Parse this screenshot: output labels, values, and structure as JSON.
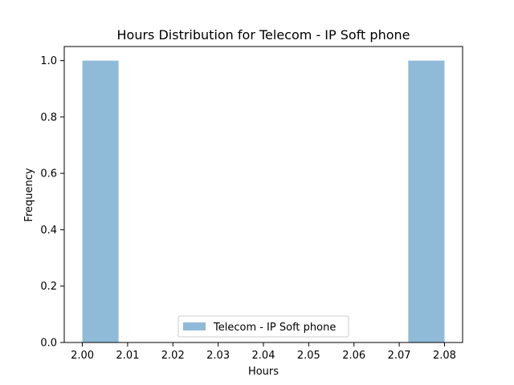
{
  "chart_data": {
    "type": "bar",
    "title": "Hours Distribution for Telecom - IP Soft phone",
    "xlabel": "Hours",
    "ylabel": "Frequency",
    "xlim": [
      1.996,
      2.084
    ],
    "ylim": [
      0.0,
      1.05
    ],
    "xticks": [
      "2.00",
      "2.01",
      "2.02",
      "2.03",
      "2.04",
      "2.05",
      "2.06",
      "2.07",
      "2.08"
    ],
    "yticks": [
      "0.0",
      "0.2",
      "0.4",
      "0.6",
      "0.8",
      "1.0"
    ],
    "bins": [
      {
        "x0": 2.0,
        "x1": 2.008,
        "count": 1
      },
      {
        "x0": 2.008,
        "x1": 2.016,
        "count": 0
      },
      {
        "x0": 2.016,
        "x1": 2.024,
        "count": 0
      },
      {
        "x0": 2.024,
        "x1": 2.032,
        "count": 0
      },
      {
        "x0": 2.032,
        "x1": 2.04,
        "count": 0
      },
      {
        "x0": 2.04,
        "x1": 2.048,
        "count": 0
      },
      {
        "x0": 2.048,
        "x1": 2.056,
        "count": 0
      },
      {
        "x0": 2.056,
        "x1": 2.064,
        "count": 0
      },
      {
        "x0": 2.064,
        "x1": 2.072,
        "count": 0
      },
      {
        "x0": 2.072,
        "x1": 2.08,
        "count": 1
      }
    ],
    "series": [
      {
        "name": "Telecom - IP Soft phone",
        "color": "#8fbbd9"
      }
    ],
    "legend_position": "bottom-center",
    "grid": false
  }
}
